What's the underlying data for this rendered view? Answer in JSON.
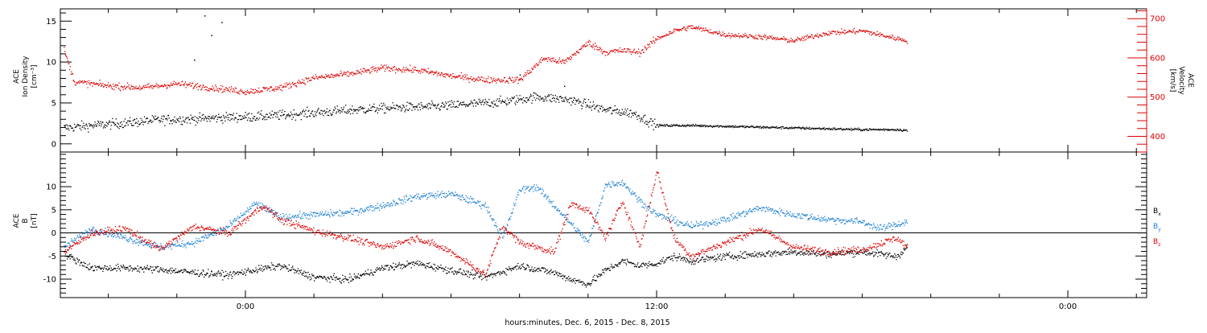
{
  "chart_data": {
    "type": "scatter",
    "xlabel": "hours:minutes, Dec.  6, 2015 - Dec.  8, 2015",
    "x_ticks": [
      {
        "hour": 0,
        "label": "0:00"
      },
      {
        "hour": 12,
        "label": "12:00"
      },
      {
        "hour": 24,
        "label": "0:00"
      }
    ],
    "x_minor_step_hours": 2,
    "xlim_hours": [
      -5.4,
      26.3
    ],
    "panels": [
      {
        "id": "density-velocity",
        "left_ylabel": [
          "ACE",
          "Ion Density",
          "[cm⁻³]"
        ],
        "right_ylabel": [
          "ACE",
          "Velocity",
          "[km/s]"
        ],
        "left_ylim": [
          -1,
          16.5
        ],
        "left_ticks": [
          0,
          5,
          10,
          15
        ],
        "right_ylim": [
          360,
          725
        ],
        "right_ticks": [
          400,
          500,
          600,
          700
        ],
        "series": [
          {
            "axis": "left",
            "color": "#000000",
            "points": [
              [
                -5.3,
                2.0
              ],
              [
                -4.5,
                2.3
              ],
              [
                -3.5,
                2.6
              ],
              [
                -2.5,
                3.0
              ],
              [
                -1.5,
                3.1
              ],
              [
                -0.5,
                3.3
              ],
              [
                0.5,
                3.4
              ],
              [
                1.5,
                3.7
              ],
              [
                2.5,
                4.0
              ],
              [
                3.5,
                4.3
              ],
              [
                4.5,
                4.5
              ],
              [
                5.5,
                4.6
              ],
              [
                6.5,
                4.9
              ],
              [
                7.5,
                5.2
              ],
              [
                8.5,
                5.8
              ],
              [
                9.5,
                5.4
              ],
              [
                10.5,
                4.2
              ],
              [
                11.3,
                3.8
              ],
              [
                12.0,
                2.3
              ],
              [
                13.0,
                2.3
              ],
              [
                14.0,
                2.2
              ],
              [
                15.0,
                2.1
              ],
              [
                16.0,
                2.0
              ],
              [
                17.0,
                1.9
              ],
              [
                18.0,
                1.8
              ],
              [
                19.0,
                1.8
              ],
              [
                19.3,
                1.7
              ]
            ],
            "spikes": [
              [
                -1.2,
                15.7
              ],
              [
                -1.0,
                13.3
              ],
              [
                -0.7,
                14.9
              ],
              [
                -1.5,
                10.3
              ],
              [
                8.0,
                8.5
              ],
              [
                9.3,
                7.1
              ]
            ]
          },
          {
            "axis": "right",
            "color": "#dd0000",
            "points": [
              [
                -5.3,
                620
              ],
              [
                -5.0,
                540
              ],
              [
                -4.0,
                530
              ],
              [
                -3.0,
                525
              ],
              [
                -2.0,
                535
              ],
              [
                -1.0,
                525
              ],
              [
                0.0,
                515
              ],
              [
                1.0,
                525
              ],
              [
                2.0,
                550
              ],
              [
                3.0,
                560
              ],
              [
                4.0,
                575
              ],
              [
                5.0,
                570
              ],
              [
                6.0,
                555
              ],
              [
                7.0,
                545
              ],
              [
                8.0,
                545
              ],
              [
                8.7,
                600
              ],
              [
                9.3,
                590
              ],
              [
                10.0,
                640
              ],
              [
                10.5,
                615
              ],
              [
                11.0,
                620
              ],
              [
                11.5,
                615
              ],
              [
                12.0,
                650
              ],
              [
                12.5,
                670
              ],
              [
                13.0,
                680
              ],
              [
                14.0,
                660
              ],
              [
                15.0,
                655
              ],
              [
                16.0,
                645
              ],
              [
                17.0,
                665
              ],
              [
                18.0,
                670
              ],
              [
                18.5,
                660
              ],
              [
                19.3,
                645
              ]
            ]
          }
        ]
      },
      {
        "id": "magnetic-field",
        "left_ylabel": [
          "ACE",
          "B",
          "[nT]"
        ],
        "left_ylim": [
          -14,
          17.5
        ],
        "left_ticks": [
          -10,
          -5,
          0,
          5,
          10
        ],
        "zero_line": true,
        "legend": [
          {
            "label": "B",
            "sub": "x",
            "color": "#000000"
          },
          {
            "label": "B",
            "sub": "y",
            "color": "#1a7fd4"
          },
          {
            "label": "B",
            "sub": "z",
            "color": "#dd0000"
          }
        ],
        "series": [
          {
            "name": "Bx",
            "color": "#000000",
            "points": [
              [
                -5.3,
                -4.5
              ],
              [
                -4.5,
                -7.5
              ],
              [
                -3.5,
                -7.5
              ],
              [
                -2.5,
                -7.8
              ],
              [
                -1.5,
                -8.5
              ],
              [
                -0.5,
                -9.0
              ],
              [
                0.2,
                -8.0
              ],
              [
                1.0,
                -7.0
              ],
              [
                2.0,
                -9.5
              ],
              [
                3.0,
                -10.0
              ],
              [
                4.0,
                -7.5
              ],
              [
                5.0,
                -6.5
              ],
              [
                6.0,
                -8.0
              ],
              [
                7.0,
                -9.5
              ],
              [
                8.0,
                -7.0
              ],
              [
                9.0,
                -8.5
              ],
              [
                9.5,
                -10.0
              ],
              [
                10.0,
                -11.0
              ],
              [
                10.5,
                -8.0
              ],
              [
                11.0,
                -6.0
              ],
              [
                11.5,
                -7.0
              ],
              [
                12.0,
                -6.5
              ],
              [
                12.5,
                -5.0
              ],
              [
                13.0,
                -6.0
              ],
              [
                14.0,
                -5.0
              ],
              [
                15.0,
                -4.5
              ],
              [
                16.0,
                -4.0
              ],
              [
                17.0,
                -4.5
              ],
              [
                18.0,
                -4.0
              ],
              [
                19.0,
                -5.0
              ],
              [
                19.3,
                -3.0
              ]
            ]
          },
          {
            "name": "By",
            "color": "#1a7fd4",
            "points": [
              [
                -5.3,
                -3.0
              ],
              [
                -4.5,
                1.0
              ],
              [
                -3.5,
                -1.0
              ],
              [
                -2.5,
                -3.0
              ],
              [
                -1.5,
                -2.0
              ],
              [
                -0.5,
                1.5
              ],
              [
                0.3,
                6.5
              ],
              [
                1.0,
                3.5
              ],
              [
                2.0,
                4.0
              ],
              [
                3.0,
                4.5
              ],
              [
                4.0,
                6.0
              ],
              [
                5.0,
                8.0
              ],
              [
                6.0,
                8.5
              ],
              [
                7.0,
                6.0
              ],
              [
                7.5,
                -1.0
              ],
              [
                8.0,
                9.5
              ],
              [
                8.5,
                10.0
              ],
              [
                9.0,
                6.0
              ],
              [
                9.5,
                2.0
              ],
              [
                10.0,
                -2.0
              ],
              [
                10.5,
                10.5
              ],
              [
                11.0,
                11.0
              ],
              [
                11.5,
                7.0
              ],
              [
                12.0,
                4.0
              ],
              [
                13.0,
                1.5
              ],
              [
                14.0,
                3.0
              ],
              [
                15.0,
                5.5
              ],
              [
                16.0,
                4.0
              ],
              [
                17.0,
                3.0
              ],
              [
                18.0,
                2.5
              ],
              [
                18.5,
                1.0
              ],
              [
                19.3,
                2.5
              ]
            ]
          },
          {
            "name": "Bz",
            "color": "#dd0000",
            "points": [
              [
                -5.3,
                -4.0
              ],
              [
                -4.5,
                0.0
              ],
              [
                -3.5,
                1.0
              ],
              [
                -2.5,
                -3.5
              ],
              [
                -1.5,
                1.5
              ],
              [
                -0.5,
                0.0
              ],
              [
                0.5,
                6.0
              ],
              [
                1.0,
                3.0
              ],
              [
                2.0,
                0.5
              ],
              [
                3.0,
                -1.0
              ],
              [
                4.0,
                -3.0
              ],
              [
                5.0,
                -1.0
              ],
              [
                6.0,
                -4.0
              ],
              [
                7.0,
                -9.0
              ],
              [
                7.5,
                1.5
              ],
              [
                8.0,
                -2.0
              ],
              [
                9.0,
                -4.0
              ],
              [
                9.5,
                6.5
              ],
              [
                10.0,
                5.0
              ],
              [
                10.5,
                -1.0
              ],
              [
                11.0,
                7.0
              ],
              [
                11.5,
                -3.0
              ],
              [
                12.0,
                13.5
              ],
              [
                12.5,
                -1.0
              ],
              [
                13.0,
                -5.0
              ],
              [
                14.0,
                -2.0
              ],
              [
                15.0,
                1.0
              ],
              [
                16.0,
                -3.0
              ],
              [
                17.0,
                -4.0
              ],
              [
                18.0,
                -3.5
              ],
              [
                19.0,
                -1.0
              ],
              [
                19.3,
                -3.0
              ]
            ]
          }
        ]
      }
    ]
  }
}
